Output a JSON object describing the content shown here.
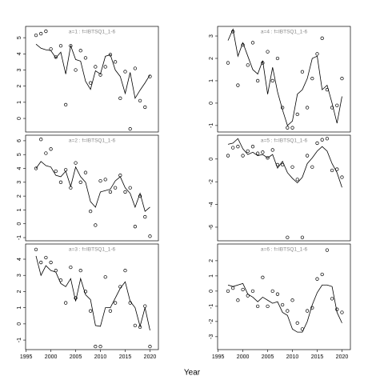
{
  "xlabel": "Year",
  "chart_data": [
    {
      "type": "line",
      "title": "a=1 : f=IBTSQ1_1-6",
      "x": [
        1997,
        1998,
        1999,
        2000,
        2001,
        2002,
        2003,
        2004,
        2005,
        2006,
        2007,
        2008,
        2009,
        2010,
        2011,
        2012,
        2013,
        2014,
        2015,
        2016,
        2017,
        2018,
        2019,
        2020
      ],
      "series": [
        {
          "style": "points",
          "color": "#000000",
          "values": [
            5.15,
            5.25,
            5.4,
            4.3,
            3.8,
            4.5,
            0.85,
            4.5,
            3.0,
            4.2,
            3.75,
            2.2,
            3.2,
            2.7,
            3.2,
            3.95,
            3.5,
            1.25,
            2.9,
            -0.65,
            3.1,
            1.1,
            0.7,
            2.6
          ]
        },
        {
          "style": "line",
          "color": "#000000",
          "values": [
            4.6,
            4.35,
            4.25,
            4.2,
            3.75,
            4.1,
            2.75,
            4.5,
            3.65,
            3.55,
            2.3,
            1.8,
            2.95,
            2.75,
            3.85,
            3.95,
            3.0,
            2.6,
            1.55,
            2.85,
            1.25,
            1.75,
            2.2,
            2.7
          ]
        }
      ],
      "xlim": [
        1994.9,
        2021.7
      ],
      "ylim": [
        -0.84,
        5.7
      ],
      "yticks": [
        0,
        1,
        2,
        3,
        4,
        5
      ]
    },
    {
      "type": "line",
      "title": "a=2 : f=IBTSQ1_1-6",
      "x": [
        1997,
        1998,
        1999,
        2000,
        2001,
        2002,
        2003,
        2004,
        2005,
        2006,
        2007,
        2008,
        2009,
        2010,
        2011,
        2012,
        2013,
        2014,
        2015,
        2016,
        2017,
        2018,
        2019,
        2020
      ],
      "series": [
        {
          "style": "points",
          "color": "#000000",
          "values": [
            4.0,
            6.1,
            5.1,
            5.4,
            3.8,
            3.0,
            3.9,
            2.6,
            4.4,
            3.0,
            3.7,
            0.9,
            -0.1,
            3.1,
            3.2,
            2.3,
            2.6,
            3.5,
            2.3,
            2.6,
            -0.2,
            2.0,
            0.5,
            -0.9
          ]
        },
        {
          "style": "line",
          "color": "#000000",
          "values": [
            4.0,
            4.5,
            4.2,
            4.1,
            3.5,
            3.4,
            3.8,
            2.7,
            4.1,
            3.4,
            3.0,
            1.6,
            1.2,
            2.3,
            2.4,
            2.5,
            3.1,
            3.4,
            2.6,
            2.2,
            1.2,
            2.2,
            0.9,
            1.2
          ]
        }
      ],
      "xlim": [
        1994.9,
        2021.7
      ],
      "ylim": [
        -1.23,
        6.4
      ],
      "yticks": [
        -1,
        0,
        1,
        2,
        3,
        4,
        5,
        6
      ]
    },
    {
      "type": "line",
      "title": "a=3 : f=IBTSQ1_1-6",
      "x": [
        1997,
        1998,
        1999,
        2000,
        2001,
        2002,
        2003,
        2004,
        2005,
        2006,
        2007,
        2008,
        2009,
        2010,
        2011,
        2012,
        2013,
        2014,
        2015,
        2016,
        2017,
        2018,
        2019,
        2020
      ],
      "series": [
        {
          "style": "points",
          "color": "#000000",
          "values": [
            4.6,
            3.8,
            4.1,
            3.8,
            3.3,
            2.7,
            1.3,
            3.5,
            1.6,
            3.3,
            2.0,
            0.8,
            -1.4,
            -1.4,
            2.9,
            0.8,
            1.3,
            2.3,
            3.3,
            1.3,
            -0.1,
            -0.2,
            1.1,
            -1.4
          ]
        },
        {
          "style": "line",
          "color": "#000000",
          "values": [
            4.2,
            3.0,
            3.6,
            3.3,
            3.2,
            2.5,
            2.3,
            2.8,
            1.4,
            2.8,
            1.8,
            1.5,
            -0.1,
            -0.15,
            1.0,
            1.0,
            1.6,
            2.2,
            2.6,
            1.4,
            1.0,
            -0.15,
            1.0,
            -0.4
          ]
        }
      ],
      "xlim": [
        1994.9,
        2021.7
      ],
      "ylim": [
        -1.59,
        4.94
      ],
      "yticks": [
        -1,
        0,
        1,
        2,
        3,
        4
      ],
      "xticks": [
        1995,
        2000,
        2005,
        2010,
        2015,
        2020
      ]
    },
    {
      "type": "line",
      "title": "a=4 : f=IBTSQ1_1-6",
      "x": [
        1997,
        1998,
        1999,
        2000,
        2001,
        2002,
        2003,
        2004,
        2005,
        2006,
        2007,
        2008,
        2009,
        2010,
        2011,
        2012,
        2013,
        2014,
        2015,
        2016,
        2017,
        2018,
        2019,
        2020
      ],
      "series": [
        {
          "style": "points",
          "color": "#000000",
          "values": [
            1.8,
            3.2,
            0.8,
            2.6,
            1.7,
            2.7,
            1.0,
            1.8,
            2.3,
            1.0,
            2.0,
            -0.2,
            -1.1,
            -1.1,
            -0.5,
            1.4,
            -0.2,
            1.1,
            2.2,
            2.9,
            0.6,
            -0.2,
            -0.1,
            1.1
          ]
        },
        {
          "style": "line",
          "color": "#000000",
          "values": [
            2.8,
            3.3,
            2.1,
            2.7,
            2.1,
            1.5,
            1.3,
            1.9,
            0.4,
            1.6,
            0.5,
            -0.3,
            -1.0,
            -0.8,
            0.4,
            0.6,
            1.1,
            2.0,
            2.1,
            0.6,
            0.8,
            0.0,
            -0.9,
            0.3
          ]
        }
      ],
      "xlim": [
        1994.9,
        2021.7
      ],
      "ylim": [
        -1.29,
        3.43
      ],
      "yticks": [
        -1,
        0,
        1,
        2,
        3
      ]
    },
    {
      "type": "line",
      "title": "a=5 : f=IBTSQ1_1-6",
      "x": [
        1997,
        1998,
        1999,
        2000,
        2001,
        2002,
        2003,
        2004,
        2005,
        2006,
        2007,
        2008,
        2009,
        2010,
        2011,
        2012,
        2013,
        2014,
        2015,
        2016,
        2017,
        2018,
        2019,
        2020
      ],
      "series": [
        {
          "style": "points",
          "color": "#000000",
          "values": [
            0.3,
            1.0,
            1.1,
            0.3,
            0.7,
            1.1,
            0.5,
            0.6,
            0.1,
            0.8,
            -0.5,
            -0.5,
            -6.9,
            -0.7,
            -1.8,
            -6.9,
            0.3,
            -0.7,
            1.4,
            1.7,
            1.8,
            -1.0,
            -0.9,
            -1.6
          ]
        },
        {
          "style": "line",
          "color": "#000000",
          "values": [
            1.3,
            1.4,
            1.8,
            0.9,
            0.4,
            0.6,
            0.3,
            0.4,
            0.1,
            0.4,
            -0.8,
            -0.2,
            -1.2,
            -1.7,
            -2.1,
            -1.6,
            -0.4,
            0.1,
            0.7,
            1.1,
            0.7,
            -0.4,
            -1.2,
            -2.5
          ]
        }
      ],
      "xlim": [
        1994.9,
        2021.7
      ],
      "ylim": [
        -7.2,
        2.1
      ],
      "yticks": [
        -6,
        -4,
        -2,
        0
      ]
    },
    {
      "type": "line",
      "title": "a=6 : f=IBTSQ1_1-6",
      "x": [
        1997,
        1998,
        1999,
        2000,
        2001,
        2002,
        2003,
        2004,
        2005,
        2006,
        2007,
        2008,
        2009,
        2010,
        2011,
        2012,
        2013,
        2014,
        2015,
        2016,
        2017,
        2018,
        2019,
        2020
      ],
      "series": [
        {
          "style": "points",
          "color": "#000000",
          "values": [
            0.0,
            0.2,
            -0.6,
            0.1,
            -0.3,
            0.0,
            -1.0,
            0.9,
            -1.0,
            0.0,
            -0.2,
            -0.9,
            -1.3,
            -0.6,
            -2.1,
            -2.5,
            -1.3,
            -1.1,
            0.8,
            1.1,
            2.7,
            -0.5,
            -1.2,
            -1.4
          ]
        },
        {
          "style": "line",
          "color": "#000000",
          "values": [
            0.4,
            0.3,
            0.4,
            0.5,
            -0.2,
            -0.4,
            -0.7,
            -0.4,
            -0.6,
            -0.8,
            -0.7,
            -1.4,
            -1.6,
            -2.5,
            -2.7,
            -2.7,
            -2.0,
            -0.9,
            -0.1,
            0.4,
            0.4,
            0.3,
            -1.4,
            -2.1
          ]
        }
      ],
      "xlim": [
        1994.9,
        2021.7
      ],
      "ylim": [
        -3.85,
        3.1
      ],
      "yticks": [
        -3,
        -2,
        -1,
        0,
        1,
        2
      ],
      "xticks": [
        1995,
        2000,
        2005,
        2010,
        2015,
        2020
      ]
    }
  ]
}
